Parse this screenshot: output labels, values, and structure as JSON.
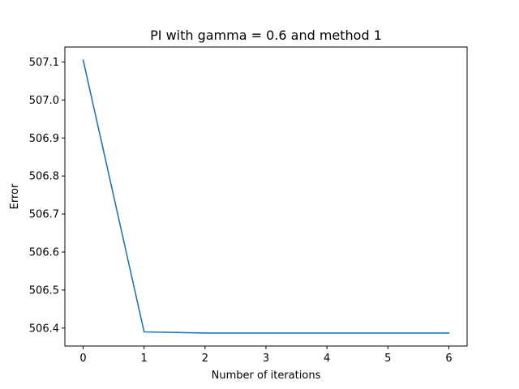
{
  "chart_data": {
    "type": "line",
    "title": "PI with gamma = 0.6 and method 1",
    "xlabel": "Number of iterations",
    "ylabel": "Error",
    "x": [
      0,
      1,
      2,
      3,
      4,
      5,
      6
    ],
    "series": [
      {
        "values": [
          507.105,
          506.39,
          506.387,
          506.387,
          506.387,
          506.387,
          506.387
        ],
        "color": "#1f77b4"
      }
    ],
    "xlim": [
      -0.3,
      6.3
    ],
    "ylim": [
      506.3527,
      507.1393
    ],
    "xticks": [
      0,
      1,
      2,
      3,
      4,
      5,
      6
    ],
    "xtick_labels": [
      "0",
      "1",
      "2",
      "3",
      "4",
      "5",
      "6"
    ],
    "yticks": [
      506.4,
      506.5,
      506.6,
      506.7,
      506.8,
      506.9,
      507.0,
      507.1
    ],
    "ytick_labels": [
      "506.4",
      "506.5",
      "506.6",
      "506.7",
      "506.8",
      "506.9",
      "507.0",
      "507.1"
    ],
    "grid": false,
    "legend": "none"
  }
}
